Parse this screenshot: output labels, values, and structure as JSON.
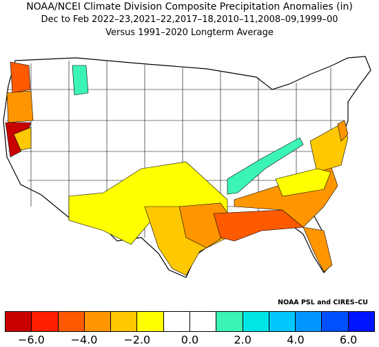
{
  "title_line1": "NOAA/NCEI Climate Division Composite Precipitation Anomalies (in)",
  "title_line2": "Dec to Feb  2022–23,2021–22,2017–18,2010–11,2008–09,1999–00",
  "title_line3": "Versus 1991–2020 Longterm Average",
  "credit": "NOAA PSL and CIRES–CU",
  "legend": {
    "colors": [
      "#c80000",
      "#ff1e00",
      "#ff5a00",
      "#ff9600",
      "#ffc800",
      "#ffff00",
      "#ffffff",
      "#ffffff",
      "#3cf5b4",
      "#00e6e6",
      "#00c8ff",
      "#0096ff",
      "#0050ff",
      "#0014ff"
    ],
    "tick_labels": [
      "−6.0",
      "−4.0",
      "−2.0",
      "0.0",
      "2.0",
      "4.0",
      "6.0"
    ],
    "tick_values": [
      -6,
      -4,
      -2,
      0,
      2,
      4,
      6
    ],
    "range": [
      -7,
      7
    ]
  },
  "map_regions": [
    {
      "name": "Washington coast",
      "class": "-4.0 to -6.0",
      "color": "#ff1e00"
    },
    {
      "name": "Oregon",
      "class": "-3.0 to -4.0",
      "color": "#ff9600"
    },
    {
      "name": "Northern California coast",
      "class": "-6.0 to -7.0",
      "color": "#c80000"
    },
    {
      "name": "Montana west",
      "class": "+1.0 to +2.0",
      "color": "#3cf5b4"
    },
    {
      "name": "Ohio Valley",
      "class": "+1.0 to +2.0",
      "color": "#3cf5b4"
    },
    {
      "name": "Gulf Coast",
      "class": "-4.0 to -6.0",
      "color": "#ff5a00"
    },
    {
      "name": "Southeast",
      "class": "-3.0 to -4.0",
      "color": "#ff9600"
    },
    {
      "name": "Southwest",
      "class": "-1.0 to -2.0",
      "color": "#ffff00"
    }
  ]
}
